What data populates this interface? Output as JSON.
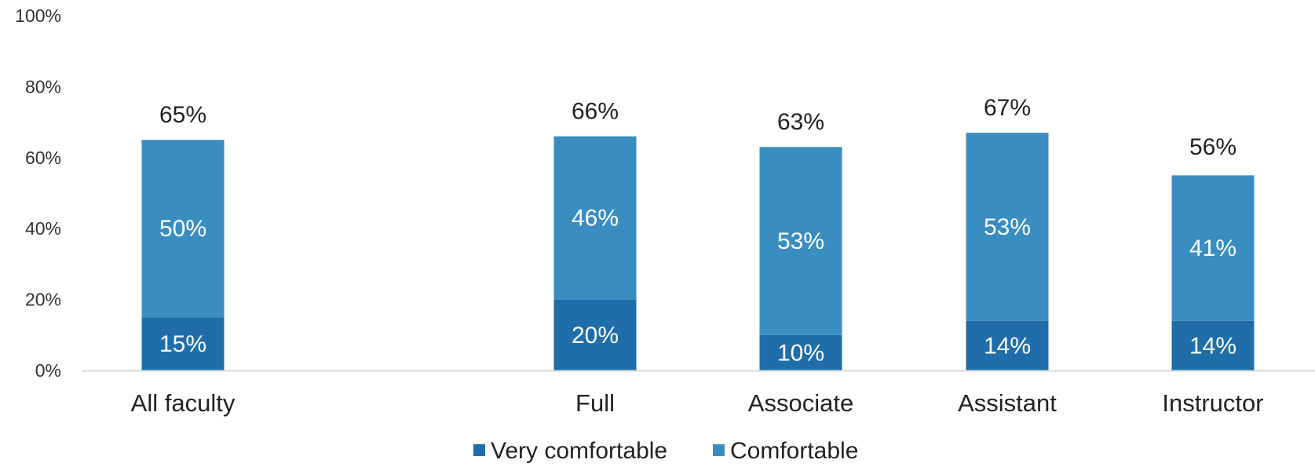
{
  "chart_data": {
    "type": "bar",
    "stacked": true,
    "categories": [
      "All faculty",
      "Full",
      "Associate",
      "Assistant",
      "Instructor"
    ],
    "series": [
      {
        "name": "Very comfortable",
        "values": [
          15,
          20,
          10,
          14,
          14
        ],
        "labels": [
          "15%",
          "20%",
          "10%",
          "14%",
          "14%"
        ]
      },
      {
        "name": "Comfortable",
        "values": [
          50,
          46,
          53,
          53,
          41
        ],
        "labels": [
          "50%",
          "46%",
          "53%",
          "53%",
          "41%"
        ]
      }
    ],
    "totals": [
      65,
      66,
      63,
      67,
      56
    ],
    "total_labels": [
      "65%",
      "66%",
      "63%",
      "67%",
      "56%"
    ],
    "ylim": [
      0,
      100
    ],
    "yticks": [
      0,
      20,
      40,
      60,
      80,
      100
    ],
    "ytick_labels": [
      "0%",
      "20%",
      "40%",
      "60%",
      "80%",
      "100%"
    ],
    "title": "",
    "xlabel": "",
    "ylabel": "",
    "grid": false,
    "legend_position": "bottom",
    "colors": {
      "very_comfortable": "#1f6ea9",
      "comfortable": "#3a8dc0",
      "axis": "#d9d9d9",
      "text": "#222222",
      "inner_label": "#ffffff"
    }
  }
}
